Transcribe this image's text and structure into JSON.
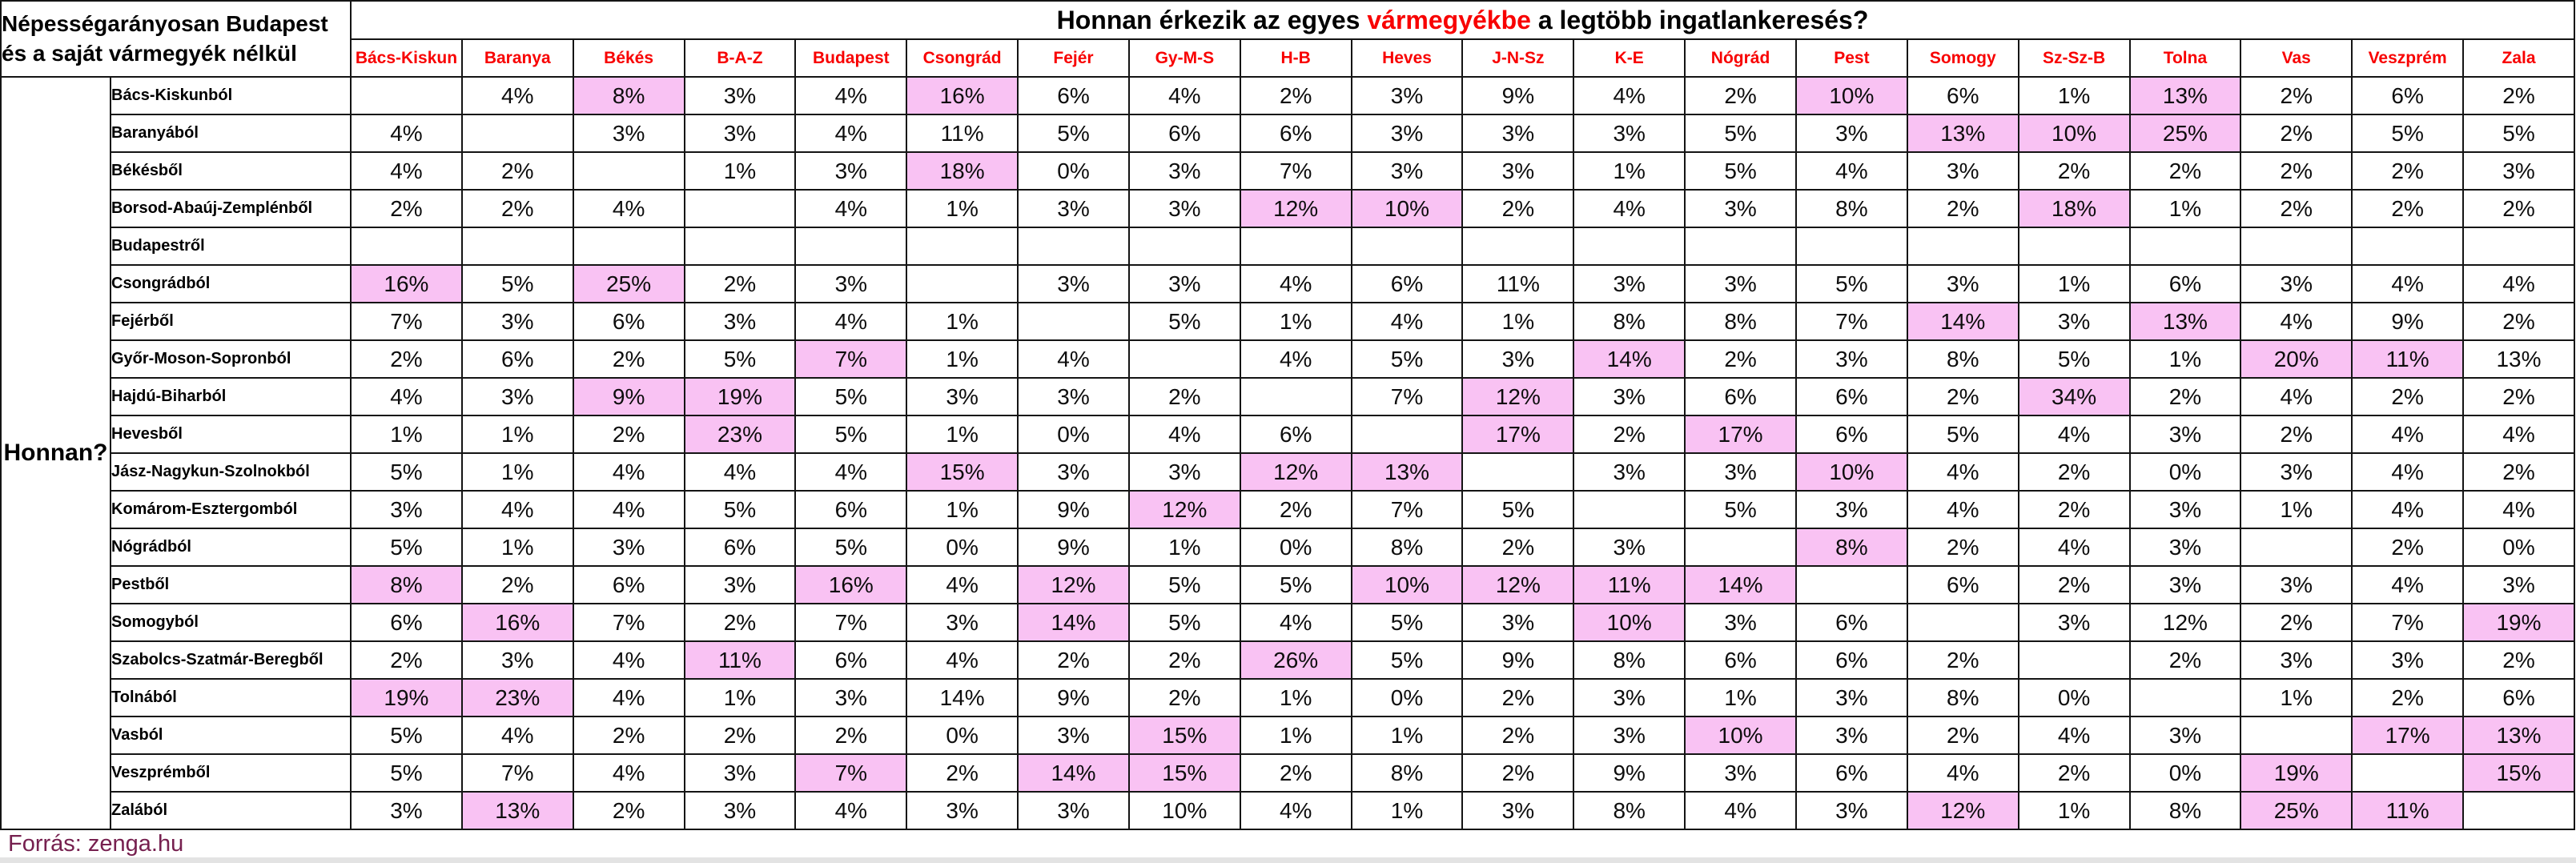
{
  "chart_data": {
    "type": "table",
    "title": "Honnan érkezik az egyes vármegyékbe a legtöbb ingatlankeresés?",
    "title_parts": {
      "pre": "Honnan érkezik az egyes ",
      "em": "vármegyékbe",
      "post": " a legtöbb ingatlankeresés?"
    },
    "note_lines": [
      "Népességarányosan Budapest",
      "és a saját vármegyék nélkül"
    ],
    "row_axis_label": "Honnan?",
    "columns": [
      "Bács-Kiskun",
      "Baranya",
      "Békés",
      "B-A-Z",
      "Budapest",
      "Csongrád",
      "Fejér",
      "Gy-M-S",
      "H-B",
      "Heves",
      "J-N-Sz",
      "K-E",
      "Nógrád",
      "Pest",
      "Somogy",
      "Sz-Sz-B",
      "Tolna",
      "Vas",
      "Veszprém",
      "Zala"
    ],
    "rows": [
      {
        "label": "Bács-Kiskunból",
        "values": [
          "",
          "4%",
          "8%",
          "3%",
          "4%",
          "16%",
          "6%",
          "4%",
          "2%",
          "3%",
          "9%",
          "4%",
          "2%",
          "10%",
          "6%",
          "1%",
          "13%",
          "2%",
          "6%",
          "2%"
        ],
        "hl": [
          2,
          5,
          13,
          16
        ]
      },
      {
        "label": "Baranyából",
        "values": [
          "4%",
          "",
          "3%",
          "3%",
          "4%",
          "11%",
          "5%",
          "6%",
          "6%",
          "3%",
          "3%",
          "3%",
          "5%",
          "3%",
          "13%",
          "10%",
          "25%",
          "2%",
          "5%",
          "5%"
        ],
        "hl": [
          14,
          15,
          16
        ]
      },
      {
        "label": "Békésből",
        "values": [
          "4%",
          "2%",
          "",
          "1%",
          "3%",
          "18%",
          "0%",
          "3%",
          "7%",
          "3%",
          "3%",
          "1%",
          "5%",
          "4%",
          "3%",
          "2%",
          "2%",
          "2%",
          "2%",
          "3%"
        ],
        "hl": [
          5
        ]
      },
      {
        "label": "Borsod-Abaúj-Zemplénből",
        "values": [
          "2%",
          "2%",
          "4%",
          "",
          "4%",
          "1%",
          "3%",
          "3%",
          "12%",
          "10%",
          "2%",
          "4%",
          "3%",
          "8%",
          "2%",
          "18%",
          "1%",
          "2%",
          "2%",
          "2%"
        ],
        "hl": [
          8,
          9,
          15
        ]
      },
      {
        "label": "Budapestről",
        "values": [
          "",
          "",
          "",
          "",
          "",
          "",
          "",
          "",
          "",
          "",
          "",
          "",
          "",
          "",
          "",
          "",
          "",
          "",
          "",
          ""
        ],
        "hl": []
      },
      {
        "label": "Csongrádból",
        "values": [
          "16%",
          "5%",
          "25%",
          "2%",
          "3%",
          "",
          "3%",
          "3%",
          "4%",
          "6%",
          "11%",
          "3%",
          "3%",
          "5%",
          "3%",
          "1%",
          "6%",
          "3%",
          "4%",
          "4%"
        ],
        "hl": [
          0,
          2
        ]
      },
      {
        "label": "Fejérből",
        "values": [
          "7%",
          "3%",
          "6%",
          "3%",
          "4%",
          "1%",
          "",
          "5%",
          "1%",
          "4%",
          "1%",
          "8%",
          "8%",
          "7%",
          "14%",
          "3%",
          "13%",
          "4%",
          "9%",
          "2%"
        ],
        "hl": [
          14,
          16
        ]
      },
      {
        "label": "Győr-Moson-Sopronból",
        "values": [
          "2%",
          "6%",
          "2%",
          "5%",
          "7%",
          "1%",
          "4%",
          "",
          "4%",
          "5%",
          "3%",
          "14%",
          "2%",
          "3%",
          "8%",
          "5%",
          "1%",
          "20%",
          "11%",
          "13%"
        ],
        "hl": [
          4,
          11,
          17,
          18
        ]
      },
      {
        "label": "Hajdú-Biharból",
        "values": [
          "4%",
          "3%",
          "9%",
          "19%",
          "5%",
          "3%",
          "3%",
          "2%",
          "",
          "7%",
          "12%",
          "3%",
          "6%",
          "6%",
          "2%",
          "34%",
          "2%",
          "4%",
          "2%",
          "2%"
        ],
        "hl": [
          2,
          3,
          10,
          15
        ]
      },
      {
        "label": "Hevesből",
        "values": [
          "1%",
          "1%",
          "2%",
          "23%",
          "5%",
          "1%",
          "0%",
          "4%",
          "6%",
          "",
          "17%",
          "2%",
          "17%",
          "6%",
          "5%",
          "4%",
          "3%",
          "2%",
          "4%",
          "4%"
        ],
        "hl": [
          3,
          10,
          12
        ]
      },
      {
        "label": "Jász-Nagykun-Szolnokból",
        "values": [
          "5%",
          "1%",
          "4%",
          "4%",
          "4%",
          "15%",
          "3%",
          "3%",
          "12%",
          "13%",
          "",
          "3%",
          "3%",
          "10%",
          "4%",
          "2%",
          "0%",
          "3%",
          "4%",
          "2%"
        ],
        "hl": [
          5,
          8,
          9,
          13
        ]
      },
      {
        "label": "Komárom-Esztergomból",
        "values": [
          "3%",
          "4%",
          "4%",
          "5%",
          "6%",
          "1%",
          "9%",
          "12%",
          "2%",
          "7%",
          "5%",
          "",
          "5%",
          "3%",
          "4%",
          "2%",
          "3%",
          "1%",
          "4%",
          "4%"
        ],
        "hl": [
          7
        ]
      },
      {
        "label": "Nógrádból",
        "values": [
          "5%",
          "1%",
          "3%",
          "6%",
          "5%",
          "0%",
          "9%",
          "1%",
          "0%",
          "8%",
          "2%",
          "3%",
          "",
          "8%",
          "2%",
          "4%",
          "3%",
          "",
          "2%",
          "0%"
        ],
        "hl": [
          13
        ]
      },
      {
        "label": "Pestből",
        "values": [
          "8%",
          "2%",
          "6%",
          "3%",
          "16%",
          "4%",
          "12%",
          "5%",
          "5%",
          "10%",
          "12%",
          "11%",
          "14%",
          "",
          "6%",
          "2%",
          "3%",
          "3%",
          "4%",
          "3%"
        ],
        "hl": [
          0,
          4,
          6,
          9,
          10,
          11,
          12
        ]
      },
      {
        "label": "Somogyból",
        "values": [
          "6%",
          "16%",
          "7%",
          "2%",
          "7%",
          "3%",
          "14%",
          "5%",
          "4%",
          "5%",
          "3%",
          "10%",
          "3%",
          "6%",
          "",
          "3%",
          "12%",
          "2%",
          "7%",
          "19%"
        ],
        "hl": [
          1,
          6,
          11,
          19
        ]
      },
      {
        "label": "Szabolcs-Szatmár-Beregből",
        "values": [
          "2%",
          "3%",
          "4%",
          "11%",
          "6%",
          "4%",
          "2%",
          "2%",
          "26%",
          "5%",
          "9%",
          "8%",
          "6%",
          "6%",
          "2%",
          "",
          "2%",
          "3%",
          "3%",
          "2%"
        ],
        "hl": [
          3,
          8
        ]
      },
      {
        "label": "Tolnából",
        "values": [
          "19%",
          "23%",
          "4%",
          "1%",
          "3%",
          "14%",
          "9%",
          "2%",
          "1%",
          "0%",
          "2%",
          "3%",
          "1%",
          "3%",
          "8%",
          "0%",
          "",
          "1%",
          "2%",
          "6%"
        ],
        "hl": [
          0,
          1
        ]
      },
      {
        "label": "Vasból",
        "values": [
          "5%",
          "4%",
          "2%",
          "2%",
          "2%",
          "0%",
          "3%",
          "15%",
          "1%",
          "1%",
          "2%",
          "3%",
          "10%",
          "3%",
          "2%",
          "4%",
          "3%",
          "",
          "17%",
          "13%"
        ],
        "hl": [
          7,
          12,
          18,
          19
        ]
      },
      {
        "label": "Veszprémből",
        "values": [
          "5%",
          "7%",
          "4%",
          "3%",
          "7%",
          "2%",
          "14%",
          "15%",
          "2%",
          "8%",
          "2%",
          "9%",
          "3%",
          "6%",
          "4%",
          "2%",
          "0%",
          "19%",
          "",
          "15%"
        ],
        "hl": [
          4,
          6,
          7,
          17,
          19
        ]
      },
      {
        "label": "Zalából",
        "values": [
          "3%",
          "13%",
          "2%",
          "3%",
          "4%",
          "3%",
          "3%",
          "10%",
          "4%",
          "1%",
          "3%",
          "8%",
          "4%",
          "3%",
          "12%",
          "1%",
          "8%",
          "25%",
          "11%",
          ""
        ],
        "hl": [
          1,
          14,
          17,
          18
        ]
      }
    ],
    "source_parts": {
      "prefix": "Forrás: ",
      "site": "zenga.hu"
    },
    "colors": {
      "header_text": "#f80000",
      "title_emphasis": "#f80000",
      "cell_highlight": "#f9c2f3",
      "source_text": "#76204f",
      "border": "#141414"
    }
  }
}
